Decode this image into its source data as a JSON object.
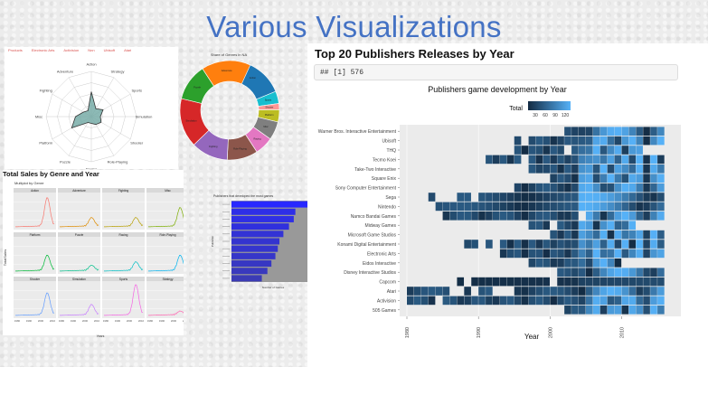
{
  "page_title": "Various Visualizations",
  "radar": {
    "tabs": [
      "Products",
      "Electronic Arts",
      "Activision",
      "Nnn",
      "Ubisoft",
      "Atari"
    ],
    "axes": [
      "Action",
      "Strategy",
      "Sports",
      "Simulation",
      "Shooter",
      "Role-Playing",
      "Racing",
      "Puzzle",
      "Platform",
      "Misc",
      "Fighting",
      "Adventure"
    ],
    "values": [
      0.55,
      0.2,
      0.3,
      0.2,
      0.25,
      0.2,
      0.15,
      0.15,
      0.5,
      0.35,
      0.2,
      0.15
    ]
  },
  "donut": {
    "title": "Share of Genres in NA",
    "slices": [
      {
        "label": "Action",
        "value": 0.18,
        "color": "#1f77b4"
      },
      {
        "label": "Sports",
        "value": 0.04,
        "color": "#17becf"
      },
      {
        "label": "Shooter",
        "value": 0.02,
        "color": "#ff9896"
      },
      {
        "label": "Platform",
        "value": 0.04,
        "color": "#bcbd22"
      },
      {
        "label": "Misc",
        "value": 0.06,
        "color": "#7f7f7f"
      },
      {
        "label": "Racing",
        "value": 0.06,
        "color": "#e377c2"
      },
      {
        "label": "Role-Playing",
        "value": 0.1,
        "color": "#8c564b"
      },
      {
        "label": "Fighting",
        "value": 0.12,
        "color": "#9467bd"
      },
      {
        "label": "Simulation",
        "value": 0.16,
        "color": "#d62728"
      },
      {
        "label": "Puzzle",
        "value": 0.12,
        "color": "#2ca02c"
      },
      {
        "label": "Adventure",
        "value": 0.16,
        "color": "#ff7f0e"
      }
    ]
  },
  "small_multiples": {
    "heading": "Total Sales by Genre and Year",
    "subheading": "Multiplot by Genre",
    "ylabel": "TotalSales",
    "xlabel": "Years",
    "panels": [
      {
        "name": "Action",
        "color": "#f8766d"
      },
      {
        "name": "Adventure",
        "color": "#de8c00"
      },
      {
        "name": "Fighting",
        "color": "#b79f00"
      },
      {
        "name": "Misc",
        "color": "#7cae00"
      },
      {
        "name": "Platform",
        "color": "#00ba38"
      },
      {
        "name": "Puzzle",
        "color": "#00c08b"
      },
      {
        "name": "Racing",
        "color": "#00bfc4"
      },
      {
        "name": "Role-Playing",
        "color": "#00b4f0"
      },
      {
        "name": "Shooter",
        "color": "#619cff"
      },
      {
        "name": "Simulation",
        "color": "#c77cff"
      },
      {
        "name": "Sports",
        "color": "#f564e3"
      },
      {
        "name": "Strategy",
        "color": "#ff64b0"
      }
    ],
    "xticks": [
      "1980",
      "1990",
      "2000",
      "2010"
    ]
  },
  "hbar": {
    "title": "Publishers that developed the most games",
    "xlabel": "Number of Games",
    "ylabel": "Publisher",
    "values": [
      1.0,
      0.8,
      0.78,
      0.72,
      0.65,
      0.6,
      0.58,
      0.55,
      0.5,
      0.45,
      0.38
    ]
  },
  "heatmap_panel": {
    "heading": "Top 20 Publishers Releases by Year",
    "code_output": "## [1] 576"
  },
  "chart_data": {
    "type": "heatmap",
    "title": "Publishers game development by Year",
    "xlabel": "Year",
    "ylabel": "",
    "legend_title": "Total",
    "legend_ticks": [
      "30",
      "60",
      "90",
      "120"
    ],
    "x_ticks": [
      "1980",
      "1990",
      "2000",
      "2010"
    ],
    "x_range": [
      1980,
      2016
    ],
    "publishers": [
      "Warner Bros. Interactive Entertainment",
      "Ubisoft",
      "THQ",
      "Tecmo Koei",
      "Take-Two Interactive",
      "Square Enix",
      "Sony Computer Entertainment",
      "Sega",
      "Nintendo",
      "Namco Bandai Games",
      "Midway Games",
      "Microsoft Game Studios",
      "Konami Digital Entertainment",
      "Electronic Arts",
      "Eidos Interactive",
      "Disney Interactive Studios",
      "Capcom",
      "Atari",
      "Activision",
      "505 Games"
    ],
    "active_years": [
      [
        [
          2002,
          2016
        ]
      ],
      [
        [
          1995,
          1996
        ],
        [
          1997,
          2016
        ]
      ],
      [
        [
          1995,
          2002
        ],
        [
          2003,
          2013
        ]
      ],
      [
        [
          1991,
          1996
        ],
        [
          1997,
          2016
        ]
      ],
      [
        [
          1997,
          2016
        ]
      ],
      [
        [
          2000,
          2016
        ]
      ],
      [
        [
          1995,
          2016
        ]
      ],
      [
        [
          1983,
          1984
        ],
        [
          1987,
          1989
        ],
        [
          1990,
          2016
        ]
      ],
      [
        [
          1984,
          2016
        ]
      ],
      [
        [
          1985,
          2004
        ],
        [
          2005,
          2016
        ]
      ],
      [
        [
          1997,
          2000
        ],
        [
          2001,
          2012
        ]
      ],
      [
        [
          2000,
          2016
        ]
      ],
      [
        [
          1988,
          1990
        ],
        [
          1991,
          1992
        ],
        [
          1993,
          2016
        ]
      ],
      [
        [
          1993,
          2016
        ]
      ],
      [
        [
          1997,
          2010
        ]
      ],
      [
        [
          2001,
          2016
        ]
      ],
      [
        [
          1987,
          1988
        ],
        [
          1989,
          2000
        ],
        [
          2001,
          2016
        ]
      ],
      [
        [
          1980,
          1986
        ],
        [
          1988,
          1989
        ],
        [
          1990,
          1992
        ],
        [
          1995,
          2016
        ]
      ],
      [
        [
          1980,
          1984
        ],
        [
          1985,
          2016
        ]
      ],
      [
        [
          2002,
          2016
        ]
      ]
    ]
  }
}
